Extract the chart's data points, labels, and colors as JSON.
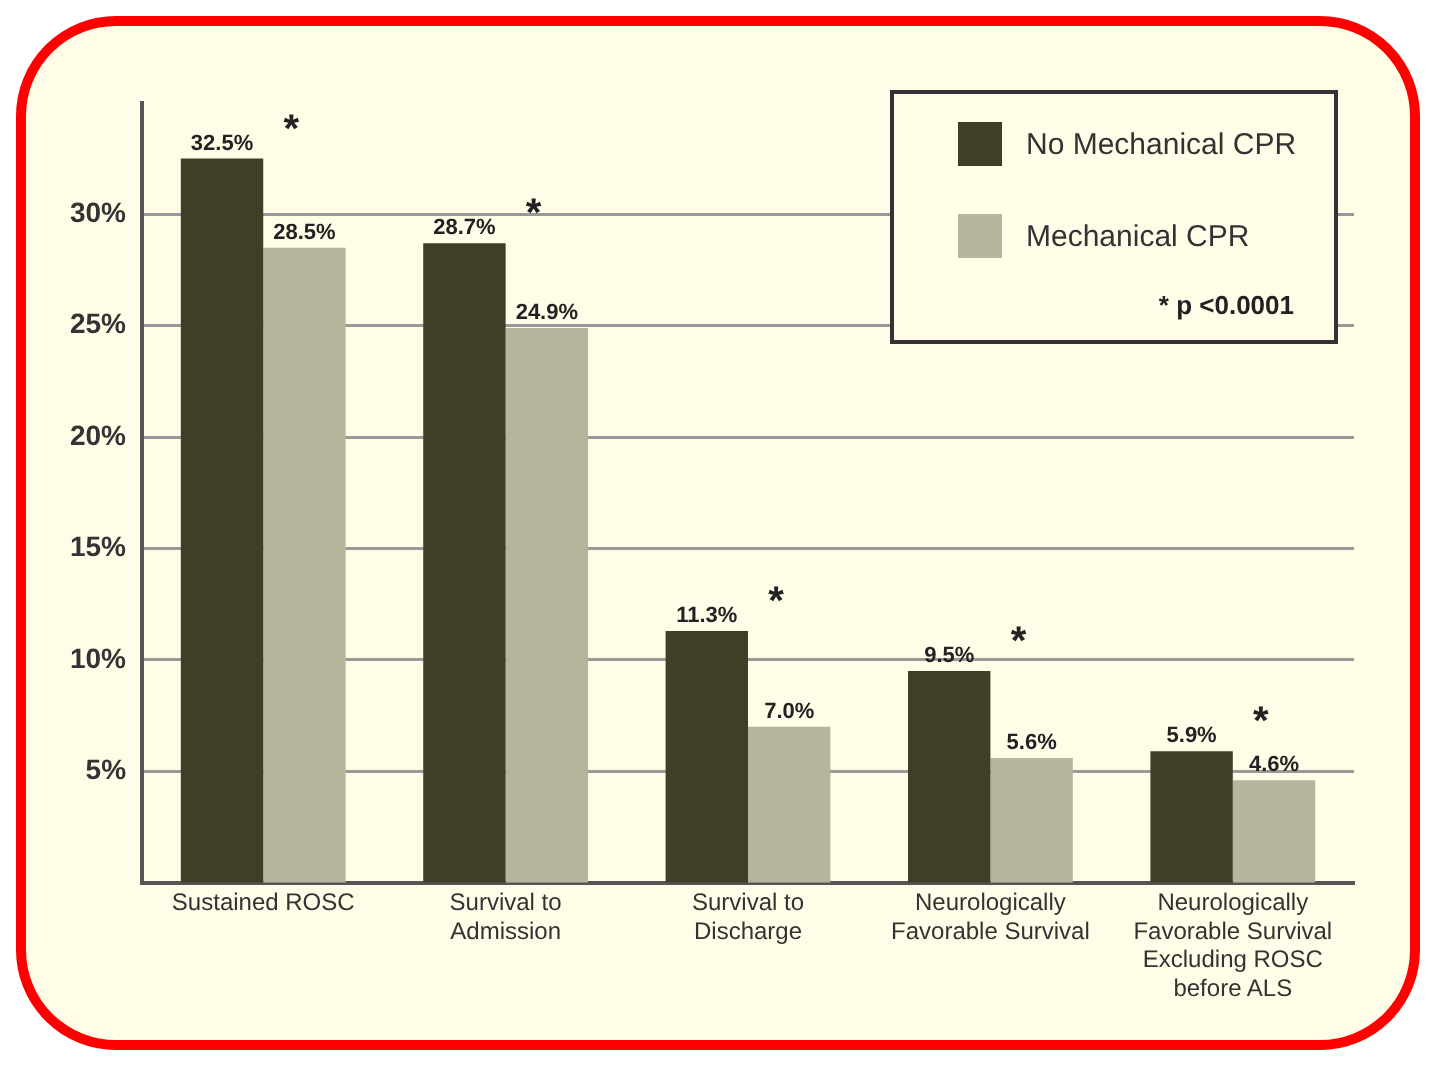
{
  "chart_data": {
    "type": "bar",
    "categories": [
      "Sustained ROSC",
      "Survival to Admission",
      "Survival to Discharge",
      "Neurologically Favorable Survival",
      "Neurologically Favorable Survival Excluding ROSC before ALS"
    ],
    "series": [
      {
        "name": "No Mechanical CPR",
        "color": "#3f3f27",
        "values": [
          32.5,
          28.7,
          11.3,
          9.5,
          5.9
        ],
        "value_labels": [
          "32.5%",
          "28.7%",
          "11.3%",
          "9.5%",
          "5.9%"
        ]
      },
      {
        "name": "Mechanical CPR",
        "color": "#b5b59c",
        "values": [
          28.5,
          24.9,
          7.0,
          5.6,
          4.6
        ],
        "value_labels": [
          "28.5%",
          "24.9%",
          "7.0%",
          "5.6%",
          "4.6%"
        ]
      }
    ],
    "ylim": [
      0,
      35
    ],
    "yticks": [
      {
        "value": 5,
        "label": "5%"
      },
      {
        "value": 10,
        "label": "10%"
      },
      {
        "value": 15,
        "label": "15%"
      },
      {
        "value": 20,
        "label": "20%"
      },
      {
        "value": 25,
        "label": "25%"
      },
      {
        "value": 30,
        "label": "30%"
      }
    ],
    "grid": "y",
    "legend": "top right",
    "annotations": [
      "*",
      "*",
      "*",
      "*",
      "*",
      "* p <0.0001"
    ]
  }
}
